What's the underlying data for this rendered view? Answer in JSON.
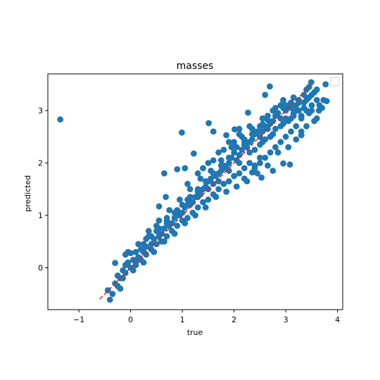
{
  "chart_data": {
    "type": "scatter",
    "title": "masses",
    "xlabel": "true",
    "ylabel": "predicted",
    "xlim": [
      -1.6,
      4.1
    ],
    "ylim": [
      -0.8,
      3.7
    ],
    "xticks": [
      -1,
      0,
      1,
      2,
      3,
      4
    ],
    "xtick_labels": [
      "−1",
      "0",
      "1",
      "2",
      "3",
      "4"
    ],
    "yticks": [
      0,
      1,
      2,
      3
    ],
    "ytick_labels": [
      "0",
      "1",
      "2",
      "3"
    ],
    "grid": false,
    "legend": "top-right (empty)",
    "point_color": "#1f77b4",
    "reference_line": {
      "x": [
        -0.6,
        3.55
      ],
      "y": [
        -0.6,
        3.55
      ],
      "color": "#d62728",
      "style": "dashed"
    },
    "points": [
      [
        -1.36,
        2.83
      ],
      [
        0.99,
        2.58
      ],
      [
        1.51,
        2.76
      ],
      [
        1.6,
        2.6
      ],
      [
        1.22,
        2.18
      ],
      [
        1.85,
        2.53
      ],
      [
        2.69,
        3.46
      ],
      [
        2.6,
        3.3
      ],
      [
        2.27,
        2.96
      ],
      [
        3.49,
        3.54
      ],
      [
        3.77,
        3.5
      ],
      [
        3.73,
        3.2
      ],
      [
        3.79,
        3.18
      ],
      [
        3.64,
        3.0
      ],
      [
        -0.4,
        -0.61
      ],
      [
        -0.3,
        0.09
      ],
      [
        -0.44,
        -0.43
      ],
      [
        -0.2,
        -0.4
      ],
      [
        0.65,
        1.8
      ],
      [
        0.9,
        1.88
      ],
      [
        1.05,
        1.9
      ],
      [
        0.68,
        1.35
      ],
      [
        0.55,
        1.17
      ],
      [
        2.35,
        1.82
      ],
      [
        2.53,
        1.72
      ],
      [
        2.75,
        1.85
      ],
      [
        2.95,
        1.99
      ],
      [
        3.08,
        1.97
      ],
      [
        3.3,
        2.53
      ],
      [
        3.05,
        2.3
      ],
      [
        2.5,
        2.1
      ],
      [
        2.2,
        1.7
      ],
      [
        2.4,
        1.95
      ],
      [
        2.1,
        2.65
      ],
      [
        2.01,
        2.64
      ],
      [
        2.55,
        2.74
      ],
      [
        2.65,
        2.82
      ],
      [
        -0.1,
        0.25
      ],
      [
        -0.05,
        0.1
      ],
      [
        0.0,
        0.28
      ],
      [
        0.1,
        0.05
      ],
      [
        0.2,
        0.35
      ],
      [
        0.3,
        0.4
      ],
      [
        0.35,
        0.6
      ],
      [
        0.45,
        0.55
      ],
      [
        0.5,
        0.8
      ],
      [
        0.6,
        0.65
      ],
      [
        0.7,
        0.95
      ],
      [
        0.8,
        0.85
      ],
      [
        0.9,
        1.1
      ],
      [
        1.0,
        1.05
      ],
      [
        1.1,
        1.3
      ],
      [
        1.2,
        1.25
      ],
      [
        1.3,
        1.45
      ],
      [
        1.4,
        1.5
      ],
      [
        1.5,
        1.65
      ],
      [
        1.6,
        1.6
      ],
      [
        1.7,
        1.8
      ],
      [
        1.8,
        1.95
      ],
      [
        1.9,
        2.0
      ],
      [
        2.0,
        2.2
      ],
      [
        2.1,
        2.15
      ],
      [
        2.2,
        2.35
      ],
      [
        2.3,
        2.4
      ],
      [
        2.4,
        2.55
      ],
      [
        2.5,
        2.5
      ],
      [
        2.6,
        2.7
      ],
      [
        2.7,
        2.75
      ],
      [
        2.8,
        2.9
      ],
      [
        2.9,
        2.85
      ],
      [
        3.0,
        3.0
      ],
      [
        3.1,
        3.05
      ],
      [
        3.2,
        3.1
      ],
      [
        3.3,
        2.9
      ],
      [
        3.4,
        3.2
      ],
      [
        3.5,
        3.1
      ],
      [
        -0.3,
        -0.3
      ],
      [
        -0.25,
        -0.15
      ],
      [
        -0.15,
        -0.05
      ],
      [
        -0.1,
        0.05
      ],
      [
        0.05,
        0.15
      ],
      [
        0.15,
        0.2
      ],
      [
        0.25,
        0.3
      ],
      [
        0.4,
        0.45
      ],
      [
        0.55,
        0.6
      ],
      [
        0.65,
        0.75
      ],
      [
        0.75,
        0.8
      ],
      [
        0.85,
        0.95
      ],
      [
        0.95,
        1.0
      ],
      [
        1.05,
        1.15
      ],
      [
        1.15,
        1.2
      ],
      [
        1.25,
        1.35
      ],
      [
        1.35,
        1.4
      ],
      [
        1.45,
        1.55
      ],
      [
        1.55,
        1.7
      ],
      [
        1.65,
        1.75
      ],
      [
        1.75,
        1.85
      ],
      [
        1.85,
        1.9
      ],
      [
        1.95,
        2.1
      ],
      [
        2.05,
        2.05
      ],
      [
        2.15,
        2.25
      ],
      [
        2.25,
        2.3
      ],
      [
        2.35,
        2.45
      ],
      [
        2.45,
        2.6
      ],
      [
        2.55,
        2.6
      ],
      [
        2.65,
        2.65
      ],
      [
        2.75,
        2.8
      ],
      [
        2.85,
        2.95
      ],
      [
        2.95,
        3.05
      ],
      [
        3.05,
        3.1
      ],
      [
        3.15,
        2.95
      ],
      [
        3.25,
        3.0
      ],
      [
        3.35,
        3.05
      ],
      [
        3.45,
        2.95
      ],
      [
        3.55,
        2.8
      ],
      [
        3.6,
        2.85
      ],
      [
        3.3,
        2.6
      ],
      [
        3.2,
        2.7
      ],
      [
        3.1,
        2.6
      ],
      [
        3.0,
        2.5
      ],
      [
        2.9,
        2.4
      ],
      [
        2.8,
        2.3
      ],
      [
        2.7,
        2.2
      ],
      [
        2.6,
        2.1
      ],
      [
        2.5,
        2.0
      ],
      [
        2.4,
        1.9
      ],
      [
        2.3,
        2.0
      ],
      [
        2.2,
        1.9
      ],
      [
        2.1,
        1.8
      ],
      [
        2.0,
        1.75
      ],
      [
        1.9,
        1.65
      ],
      [
        1.8,
        1.6
      ],
      [
        1.7,
        1.5
      ],
      [
        1.6,
        1.4
      ],
      [
        1.5,
        1.3
      ],
      [
        1.4,
        1.25
      ],
      [
        1.3,
        1.15
      ],
      [
        1.2,
        1.05
      ],
      [
        1.1,
        0.95
      ],
      [
        1.0,
        0.9
      ],
      [
        0.9,
        0.8
      ],
      [
        0.8,
        0.7
      ],
      [
        0.7,
        0.6
      ],
      [
        0.6,
        0.5
      ],
      [
        0.5,
        0.45
      ],
      [
        0.4,
        0.35
      ],
      [
        0.3,
        0.25
      ],
      [
        0.2,
        0.15
      ],
      [
        0.1,
        0.1
      ],
      [
        0.0,
        0.0
      ],
      [
        -0.1,
        -0.1
      ],
      [
        -0.2,
        -0.2
      ],
      [
        0.15,
        0.45
      ],
      [
        0.35,
        0.7
      ],
      [
        0.55,
        0.9
      ],
      [
        0.75,
        1.1
      ],
      [
        0.95,
        1.3
      ],
      [
        1.15,
        1.5
      ],
      [
        1.35,
        1.7
      ],
      [
        1.55,
        1.85
      ],
      [
        1.75,
        2.05
      ],
      [
        1.95,
        2.3
      ],
      [
        2.15,
        2.5
      ],
      [
        2.35,
        2.65
      ],
      [
        2.55,
        2.85
      ],
      [
        2.75,
        3.0
      ],
      [
        2.95,
        3.15
      ],
      [
        3.15,
        3.25
      ],
      [
        3.35,
        3.3
      ],
      [
        3.55,
        3.35
      ],
      [
        3.45,
        3.25
      ],
      [
        3.25,
        3.15
      ],
      [
        3.7,
        3.05
      ],
      [
        3.65,
        3.1
      ],
      [
        3.4,
        2.7
      ],
      [
        3.2,
        2.45
      ],
      [
        2.85,
        2.2
      ],
      [
        2.65,
        1.95
      ],
      [
        2.45,
        1.8
      ],
      [
        2.25,
        1.65
      ],
      [
        2.05,
        1.55
      ],
      [
        1.85,
        1.45
      ],
      [
        1.65,
        1.35
      ],
      [
        1.45,
        1.15
      ],
      [
        1.25,
        1.0
      ],
      [
        1.05,
        0.85
      ],
      [
        0.85,
        0.65
      ],
      [
        0.65,
        0.5
      ],
      [
        0.45,
        0.3
      ],
      [
        0.25,
        0.1
      ],
      [
        0.05,
        -0.05
      ],
      [
        -0.15,
        -0.2
      ],
      [
        -0.35,
        -0.5
      ],
      [
        -0.25,
        -0.35
      ],
      [
        1.9,
        2.4
      ],
      [
        1.7,
        2.2
      ],
      [
        1.5,
        2.0
      ],
      [
        1.3,
        1.8
      ],
      [
        1.1,
        1.6
      ],
      [
        2.1,
        2.55
      ],
      [
        2.3,
        2.7
      ],
      [
        2.9,
        3.1
      ],
      [
        3.05,
        2.8
      ],
      [
        2.55,
        2.4
      ],
      [
        2.75,
        2.55
      ],
      [
        2.95,
        2.75
      ],
      [
        3.15,
        2.9
      ],
      [
        3.35,
        3.15
      ],
      [
        3.5,
        3.3
      ],
      [
        3.6,
        3.2
      ],
      [
        1.4,
        1.9
      ],
      [
        1.6,
        2.05
      ],
      [
        1.8,
        2.25
      ],
      [
        2.0,
        2.4
      ],
      [
        2.2,
        2.45
      ],
      [
        2.4,
        2.25
      ],
      [
        2.6,
        2.45
      ],
      [
        2.8,
        2.65
      ],
      [
        3.0,
        2.85
      ],
      [
        3.2,
        3.0
      ],
      [
        3.4,
        3.0
      ],
      [
        0.3,
        0.55
      ],
      [
        0.5,
        0.7
      ],
      [
        0.7,
        0.85
      ],
      [
        0.9,
        1.0
      ],
      [
        1.1,
        1.2
      ],
      [
        1.3,
        1.35
      ],
      [
        1.5,
        1.5
      ],
      [
        1.7,
        1.65
      ],
      [
        1.9,
        1.85
      ],
      [
        2.1,
        2.0
      ],
      [
        2.3,
        2.2
      ],
      [
        2.5,
        2.35
      ],
      [
        2.7,
        2.5
      ],
      [
        2.9,
        2.7
      ],
      [
        3.1,
        2.85
      ],
      [
        3.3,
        2.85
      ],
      [
        3.5,
        3.0
      ],
      [
        -0.05,
        0.3
      ],
      [
        0.1,
        0.3
      ],
      [
        0.25,
        0.45
      ],
      [
        0.4,
        0.6
      ],
      [
        0.55,
        0.75
      ],
      [
        0.7,
        0.9
      ],
      [
        0.85,
        1.05
      ],
      [
        1.0,
        1.2
      ],
      [
        1.15,
        1.35
      ],
      [
        1.3,
        1.5
      ],
      [
        1.45,
        1.65
      ],
      [
        1.6,
        1.8
      ],
      [
        1.75,
        1.95
      ],
      [
        1.9,
        2.1
      ],
      [
        2.05,
        2.3
      ],
      [
        2.2,
        2.4
      ],
      [
        2.35,
        2.55
      ],
      [
        2.5,
        2.7
      ],
      [
        2.65,
        2.9
      ],
      [
        2.8,
        3.05
      ],
      [
        2.95,
        3.2
      ],
      [
        3.1,
        3.15
      ],
      [
        3.25,
        3.2
      ],
      [
        3.4,
        3.4
      ],
      [
        3.6,
        3.4
      ],
      [
        3.45,
        3.45
      ]
    ]
  }
}
